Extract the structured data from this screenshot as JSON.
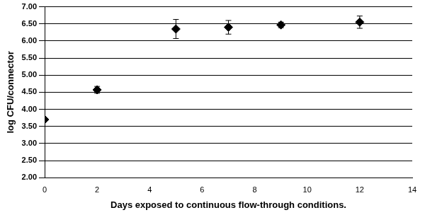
{
  "chart_data": {
    "type": "scatter",
    "x_label": "Days exposed to continuous flow-through conditions.",
    "y_label": "log CFU/connector",
    "x": [
      0,
      2,
      5,
      7,
      9,
      12
    ],
    "values": [
      3.7,
      4.57,
      6.35,
      6.4,
      6.47,
      6.55
    ],
    "errors": [
      0.03,
      0.1,
      0.28,
      0.2,
      0.08,
      0.18
    ],
    "color": "#000000",
    "marker": "diamond",
    "xlim": [
      0,
      14
    ],
    "xticks": [
      0,
      2,
      4,
      6,
      8,
      10,
      12,
      14
    ],
    "ylim": [
      2,
      7
    ],
    "yticks": [
      {
        "value": 2,
        "label": "2.00"
      },
      {
        "value": 2.5,
        "label": "2.50"
      },
      {
        "value": 3,
        "label": "3.00"
      },
      {
        "value": 3.5,
        "label": "3.50"
      },
      {
        "value": 4,
        "label": "4.00"
      },
      {
        "value": 4.5,
        "label": "4.50"
      },
      {
        "value": 5,
        "label": "5.00"
      },
      {
        "value": 5.5,
        "label": "5.50"
      },
      {
        "value": 6,
        "label": "6.00"
      },
      {
        "value": 6.5,
        "label": "6.50"
      },
      {
        "value": 7,
        "label": "7.00"
      }
    ],
    "grid": true
  }
}
